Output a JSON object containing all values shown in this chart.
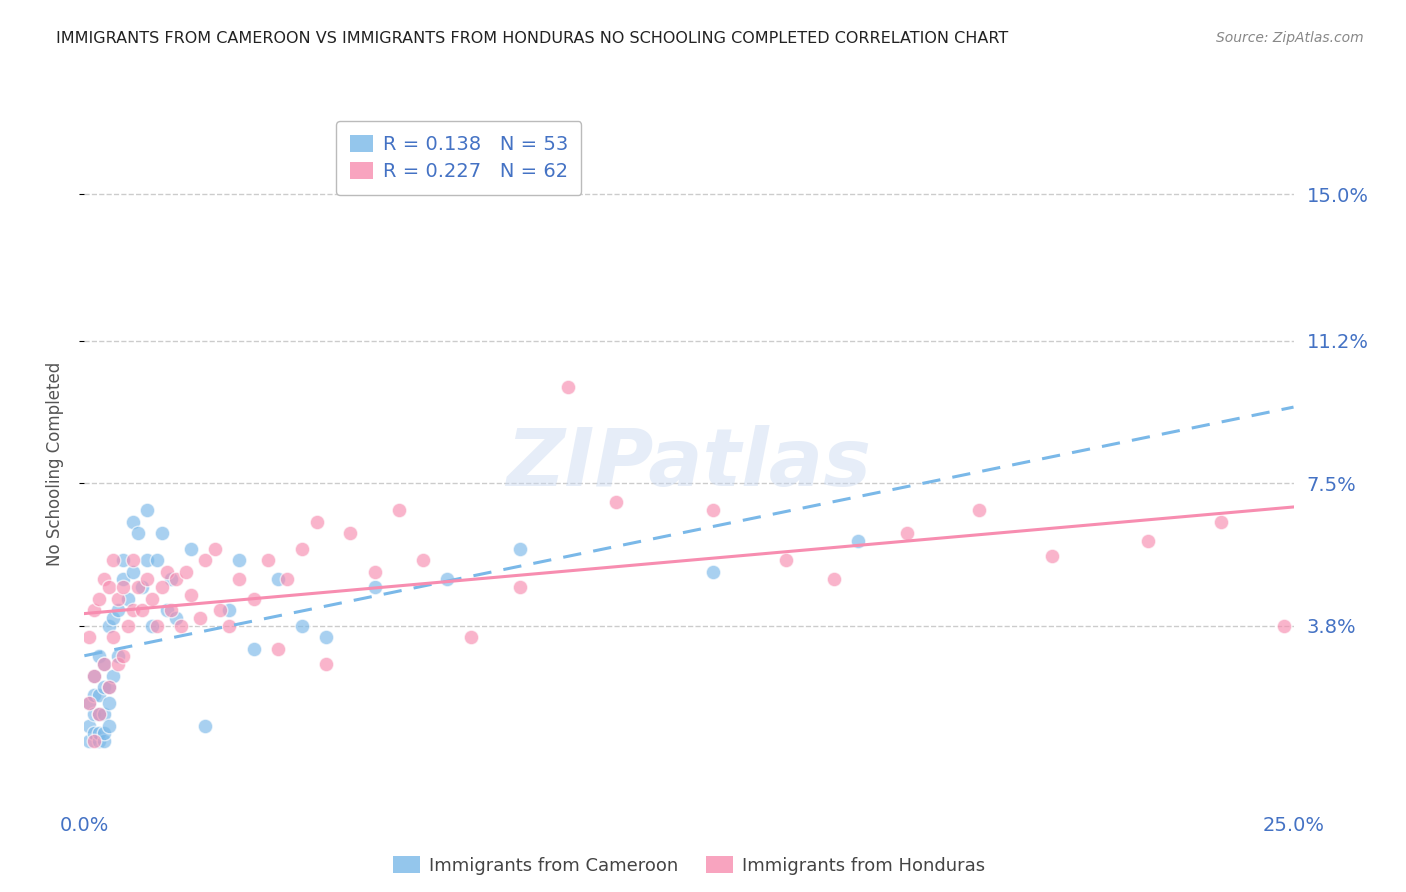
{
  "title": "IMMIGRANTS FROM CAMEROON VS IMMIGRANTS FROM HONDURAS NO SCHOOLING COMPLETED CORRELATION CHART",
  "source": "Source: ZipAtlas.com",
  "ylabel": "No Schooling Completed",
  "ytick_labels": [
    "3.8%",
    "7.5%",
    "11.2%",
    "15.0%"
  ],
  "ytick_values": [
    0.038,
    0.075,
    0.112,
    0.15
  ],
  "xlim": [
    0.0,
    0.25
  ],
  "ylim": [
    -0.008,
    0.168
  ],
  "color_cameroon": "#7ab8e8",
  "color_honduras": "#f78db0",
  "R_cameroon": 0.138,
  "N_cameroon": 53,
  "R_honduras": 0.227,
  "N_honduras": 62,
  "watermark_text": "ZIPatlas",
  "cameroon_x": [
    0.001,
    0.001,
    0.001,
    0.002,
    0.002,
    0.002,
    0.002,
    0.003,
    0.003,
    0.003,
    0.003,
    0.003,
    0.004,
    0.004,
    0.004,
    0.004,
    0.004,
    0.005,
    0.005,
    0.005,
    0.005,
    0.006,
    0.006,
    0.007,
    0.007,
    0.008,
    0.008,
    0.009,
    0.01,
    0.01,
    0.011,
    0.012,
    0.013,
    0.013,
    0.014,
    0.015,
    0.016,
    0.017,
    0.018,
    0.019,
    0.022,
    0.025,
    0.03,
    0.032,
    0.035,
    0.04,
    0.045,
    0.05,
    0.06,
    0.075,
    0.09,
    0.13,
    0.16
  ],
  "cameroon_y": [
    0.008,
    0.012,
    0.018,
    0.01,
    0.015,
    0.02,
    0.025,
    0.008,
    0.01,
    0.015,
    0.02,
    0.03,
    0.008,
    0.01,
    0.015,
    0.022,
    0.028,
    0.012,
    0.018,
    0.022,
    0.038,
    0.025,
    0.04,
    0.03,
    0.042,
    0.05,
    0.055,
    0.045,
    0.052,
    0.065,
    0.062,
    0.048,
    0.055,
    0.068,
    0.038,
    0.055,
    0.062,
    0.042,
    0.05,
    0.04,
    0.058,
    0.012,
    0.042,
    0.055,
    0.032,
    0.05,
    0.038,
    0.035,
    0.048,
    0.05,
    0.058,
    0.052,
    0.06
  ],
  "honduras_x": [
    0.001,
    0.001,
    0.002,
    0.002,
    0.002,
    0.003,
    0.003,
    0.004,
    0.004,
    0.005,
    0.005,
    0.006,
    0.006,
    0.007,
    0.007,
    0.008,
    0.008,
    0.009,
    0.01,
    0.01,
    0.011,
    0.012,
    0.013,
    0.014,
    0.015,
    0.016,
    0.017,
    0.018,
    0.019,
    0.02,
    0.021,
    0.022,
    0.024,
    0.025,
    0.027,
    0.028,
    0.03,
    0.032,
    0.035,
    0.038,
    0.04,
    0.042,
    0.045,
    0.048,
    0.05,
    0.055,
    0.06,
    0.065,
    0.07,
    0.08,
    0.09,
    0.1,
    0.11,
    0.13,
    0.145,
    0.155,
    0.17,
    0.185,
    0.2,
    0.22,
    0.235,
    0.248
  ],
  "honduras_y": [
    0.018,
    0.035,
    0.008,
    0.025,
    0.042,
    0.015,
    0.045,
    0.028,
    0.05,
    0.022,
    0.048,
    0.035,
    0.055,
    0.028,
    0.045,
    0.03,
    0.048,
    0.038,
    0.042,
    0.055,
    0.048,
    0.042,
    0.05,
    0.045,
    0.038,
    0.048,
    0.052,
    0.042,
    0.05,
    0.038,
    0.052,
    0.046,
    0.04,
    0.055,
    0.058,
    0.042,
    0.038,
    0.05,
    0.045,
    0.055,
    0.032,
    0.05,
    0.058,
    0.065,
    0.028,
    0.062,
    0.052,
    0.068,
    0.055,
    0.035,
    0.048,
    0.1,
    0.07,
    0.068,
    0.055,
    0.05,
    0.062,
    0.068,
    0.056,
    0.06,
    0.065,
    0.038
  ],
  "background_color": "#ffffff",
  "grid_color": "#cccccc",
  "tick_color": "#4472c4",
  "title_color": "#222222",
  "source_color": "#888888",
  "title_fontsize": 11.5,
  "ylabel_color": "#555555",
  "legend_value_color": "#4472c4",
  "bottom_legend_labels": [
    "Immigrants from Cameroon",
    "Immigrants from Honduras"
  ]
}
